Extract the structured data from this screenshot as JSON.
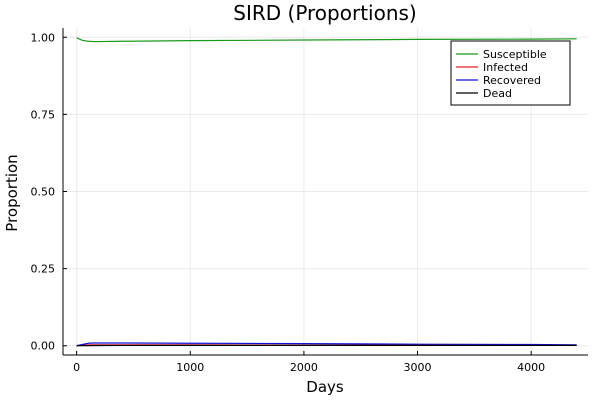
{
  "chart_data": {
    "type": "line",
    "title": "SIRD (Proportions)",
    "xlabel": "Days",
    "ylabel": "Proportion",
    "xlim": [
      -120,
      4500
    ],
    "ylim": [
      -0.03,
      1.03
    ],
    "xticks": [
      0,
      1000,
      2000,
      3000,
      4000
    ],
    "xtick_labels": [
      "0",
      "1000",
      "2000",
      "3000",
      "4000"
    ],
    "yticks": [
      0,
      0.25,
      0.5,
      0.75,
      1.0
    ],
    "ytick_labels": [
      "0.00",
      "0.25",
      "0.50",
      "0.75",
      "1.00"
    ],
    "grid": true,
    "legend_position": "top-right",
    "series": [
      {
        "name": "Susceptible",
        "color": "#1a9a1a",
        "x": [
          0,
          20,
          50,
          100,
          150,
          200,
          400,
          1000,
          2000,
          3000,
          4000,
          4400
        ],
        "y": [
          0.998,
          0.995,
          0.99,
          0.987,
          0.986,
          0.986,
          0.987,
          0.989,
          0.991,
          0.993,
          0.994,
          0.995
        ]
      },
      {
        "name": "Infected",
        "color": "#e02020",
        "x": [
          0,
          50,
          100,
          150,
          200,
          400,
          1000,
          2000,
          3000,
          4000,
          4400
        ],
        "y": [
          0.001,
          0.002,
          0.003,
          0.003,
          0.003,
          0.003,
          0.003,
          0.002,
          0.002,
          0.001,
          0.001
        ]
      },
      {
        "name": "Recovered",
        "color": "#1010d8",
        "x": [
          0,
          50,
          100,
          150,
          200,
          400,
          1000,
          2000,
          3000,
          4000,
          4400
        ],
        "y": [
          0.0,
          0.004,
          0.008,
          0.009,
          0.009,
          0.009,
          0.008,
          0.007,
          0.005,
          0.004,
          0.003
        ]
      },
      {
        "name": "Dead",
        "color": "#000000",
        "x": [
          0,
          50,
          100,
          200,
          400,
          1000,
          2000,
          3000,
          4000,
          4400
        ],
        "y": [
          0.0,
          0.0002,
          0.0005,
          0.0008,
          0.001,
          0.0012,
          0.0013,
          0.0013,
          0.0012,
          0.0012
        ]
      }
    ]
  }
}
